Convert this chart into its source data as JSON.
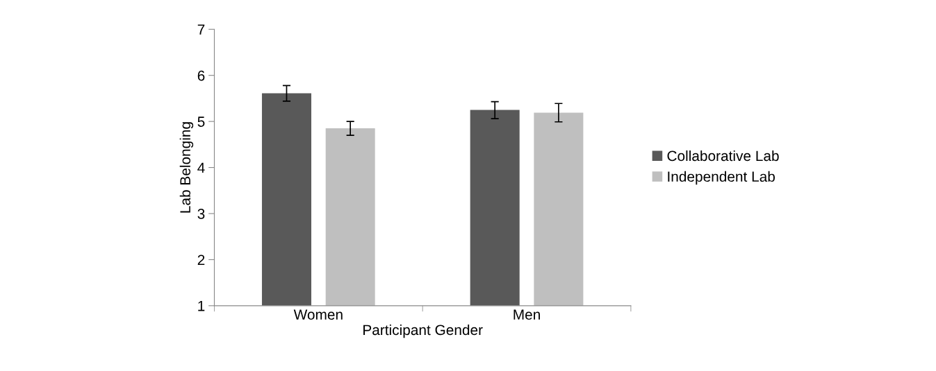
{
  "chart_data": {
    "type": "bar",
    "xlabel": "Participant Gender",
    "ylabel": "Lab Belonging",
    "categories": [
      "Women",
      "Men"
    ],
    "series": [
      {
        "name": "Collaborative Lab",
        "color": "#595959",
        "values": [
          5.61,
          5.25
        ],
        "errors": [
          [
            5.44,
            5.78
          ],
          [
            5.06,
            5.43
          ]
        ]
      },
      {
        "name": "Independent Lab",
        "color": "#bfbfbf",
        "values": [
          4.85,
          5.19
        ],
        "errors": [
          [
            4.7,
            5.0
          ],
          [
            4.99,
            5.39
          ]
        ]
      }
    ],
    "ylim": [
      1,
      7
    ],
    "yticks": [
      1,
      2,
      3,
      4,
      5,
      6,
      7
    ],
    "grid": false,
    "legend": "right"
  }
}
